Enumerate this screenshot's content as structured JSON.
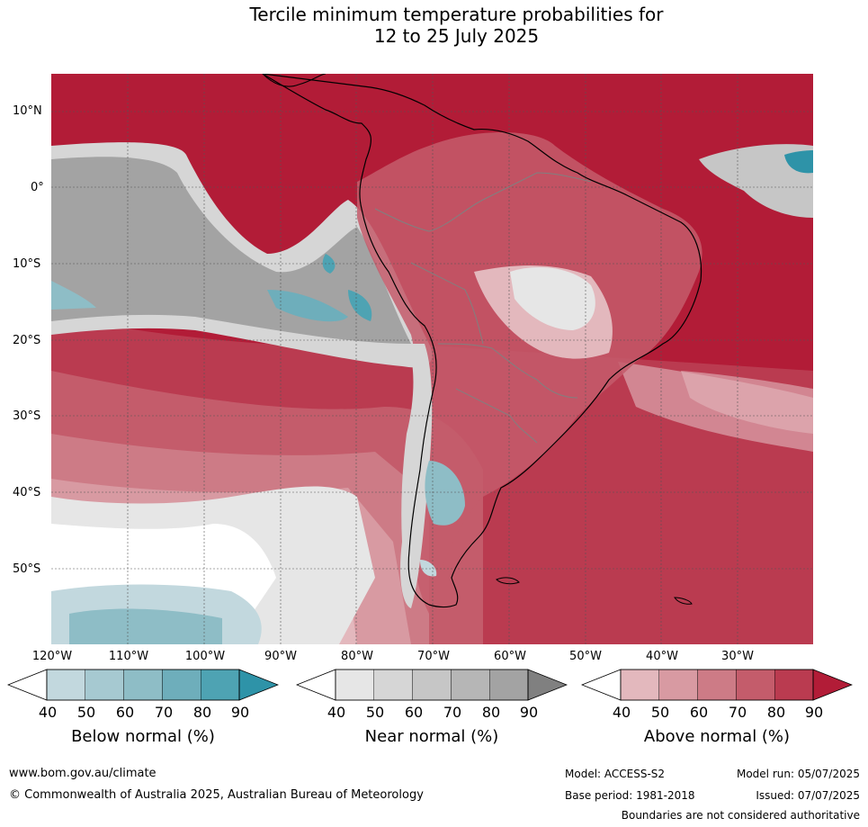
{
  "title": {
    "line1": "Tercile minimum temperature probabilities for",
    "line2": "12 to 25 July 2025"
  },
  "lat_labels": [
    "10°N",
    "0°",
    "10°S",
    "20°S",
    "30°S",
    "40°S",
    "50°S"
  ],
  "lon_labels": [
    "120°W",
    "110°W",
    "100°W",
    "90°W",
    "80°W",
    "70°W",
    "60°W",
    "50°W",
    "40°W",
    "30°W"
  ],
  "colors": {
    "below": [
      "#ffffff",
      "#c2d8de",
      "#a6c9d1",
      "#8ebdc6",
      "#6eaebb",
      "#4ea3b3",
      "#2e93a8"
    ],
    "near": [
      "#ffffff",
      "#e6e6e6",
      "#d6d6d6",
      "#c6c6c6",
      "#b6b6b6",
      "#a3a3a3",
      "#808080"
    ],
    "above": [
      "#ffffff",
      "#e3b8bd",
      "#d89aa2",
      "#cd7b86",
      "#c45c6b",
      "#ba3b50",
      "#b21c37"
    ],
    "ocean_dominant": "#b21c37",
    "land_line": "#000000",
    "border_line": "#808080"
  },
  "colorbars": [
    {
      "id": "below",
      "title": "Below normal (%)",
      "ticks": [
        "40",
        "50",
        "60",
        "70",
        "80",
        "90"
      ]
    },
    {
      "id": "near",
      "title": "Near normal (%)",
      "ticks": [
        "40",
        "50",
        "60",
        "70",
        "80",
        "90"
      ]
    },
    {
      "id": "above",
      "title": "Above normal (%)",
      "ticks": [
        "40",
        "50",
        "60",
        "70",
        "80",
        "90"
      ]
    }
  ],
  "footer": {
    "url": "www.bom.gov.au/climate",
    "copyright": "© Commonwealth of Australia 2025, Australian Bureau of Meteorology",
    "model": "Model: ACCESS-S2",
    "model_run": "Model run: 05/07/2025",
    "base_period": "Base period: 1981-2018",
    "issued": "Issued: 07/07/2025",
    "boundaries": "Boundaries are not considered authoritative"
  }
}
